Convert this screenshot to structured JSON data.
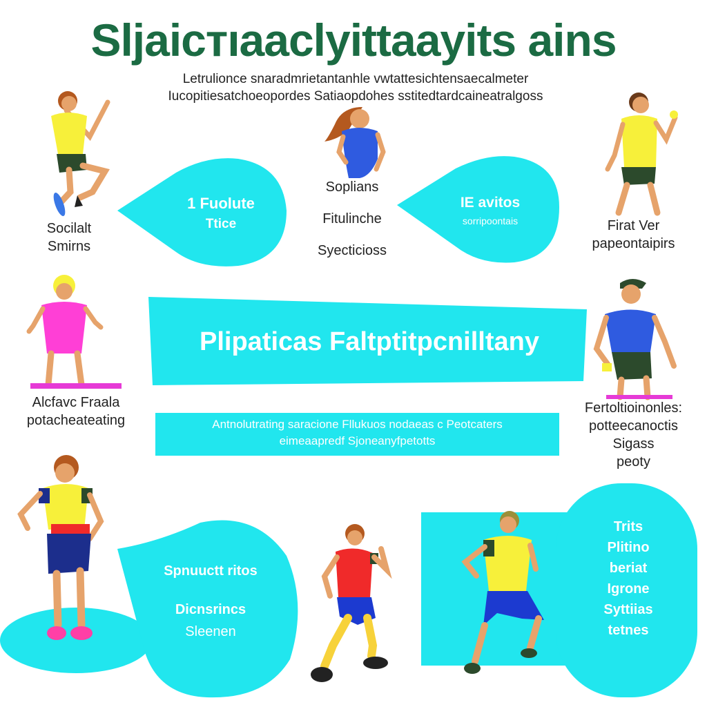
{
  "header": {
    "title": "Sljaicтıaaclyittaayits ains",
    "subtitle_lines": [
      "Letrulionce snaradmrietantanhle vwtattesichtensaecalmeter",
      "Iucopitiesatchoeopordes Satiaopdohes sstitedtardcaineatralgoss"
    ]
  },
  "bubbles": {
    "top_left": {
      "line1": "1 Fuolute",
      "line2": "Ttice"
    },
    "top_right": {
      "line1": "IE avitos",
      "line2": "sorripoontais"
    },
    "bottom_left": {
      "line1": "Spnuuctt ritos",
      "line2": "Dicnsrincs",
      "line3": "Sleenen"
    },
    "bottom_right": {
      "lines": [
        "Trits",
        "Plitino",
        "beriat",
        "Igrone",
        "Syttiias",
        "tetnes"
      ]
    }
  },
  "center": {
    "heading": "Plipaticas Faltptitpcnilltany",
    "caption_lines": [
      "Antnolutrating saracione Fllukuos nodaeas c Peotcaters",
      "eimeaapredf Sjoneanyfpetotts"
    ]
  },
  "labels": {
    "top_left": [
      "Socilalt",
      "Smirns"
    ],
    "top_middle": [
      "Soplians",
      "Fitulinche",
      "Syecticioss"
    ],
    "top_right": [
      "Firat Ver",
      "papeontaipirs"
    ],
    "mid_left": [
      "Alcfavc Fraala",
      "potacheateating"
    ],
    "mid_right": [
      "Fertoltioinonles:",
      "potteecanoctis",
      "Sigass",
      "peoty"
    ]
  },
  "colors": {
    "accent": "#21e6ee",
    "title": "#1b6b43",
    "shirt_yellow": "#f7f03a",
    "shirt_blue": "#2f5be0",
    "shirt_pink": "#ff3fd6",
    "shirt_red": "#f02a2a",
    "shorts_green": "#2c4a2c",
    "shorts_navy": "#1c2e8c",
    "skin": "#e6a36b"
  }
}
